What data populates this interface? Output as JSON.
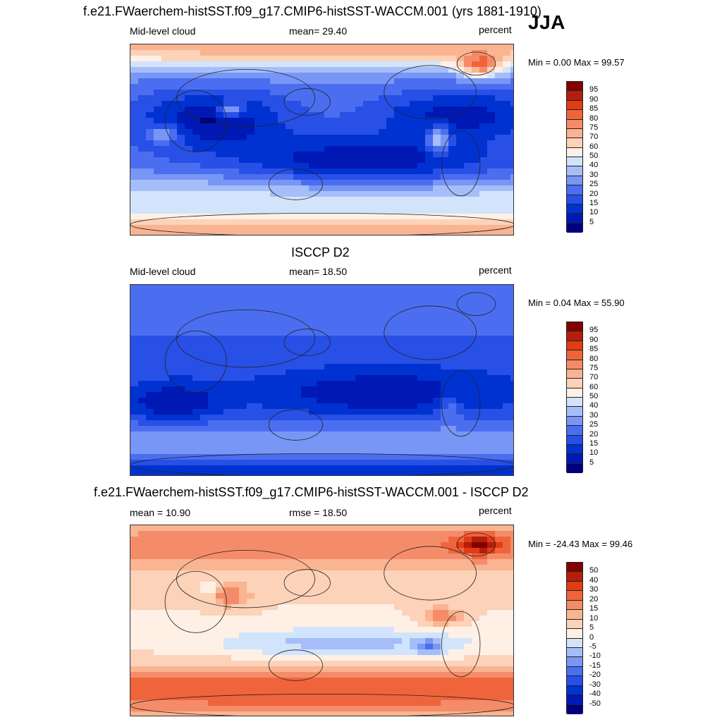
{
  "season": "JJA",
  "units_label": "percent",
  "panels": [
    {
      "title": "f.e21.FWaerchem-histSST.f09_g17.CMIP6-histSST-WACCM.001 (yrs 1881-1910)",
      "left_label": "Mid-level cloud",
      "center_label": "mean=  29.40",
      "right_label": "percent",
      "minmax": "Min =   0.00 Max =  99.57",
      "colorbar_ticks": [
        "95",
        "90",
        "85",
        "80",
        "75",
        "70",
        "60",
        "50",
        "40",
        "30",
        "25",
        "20",
        "15",
        "10",
        "5"
      ],
      "field": "model"
    },
    {
      "title": "ISCCP D2",
      "left_label": "Mid-level cloud",
      "center_label": "mean=  18.50",
      "right_label": "percent",
      "minmax": "Min =   0.04 Max =  55.90",
      "colorbar_ticks": [
        "95",
        "90",
        "85",
        "80",
        "75",
        "70",
        "60",
        "50",
        "40",
        "30",
        "25",
        "20",
        "15",
        "10",
        "5"
      ],
      "field": "obs"
    },
    {
      "title": "f.e21.FWaerchem-histSST.f09_g17.CMIP6-histSST-WACCM.001 - ISCCP D2",
      "left_label": "mean =  10.90",
      "center_label": "rmse =  18.50",
      "right_label": "percent",
      "minmax": "Min = -24.43 Max =  99.46",
      "colorbar_ticks": [
        "50",
        "40",
        "30",
        "20",
        "15",
        "10",
        "5",
        "0",
        "-5",
        "-10",
        "-15",
        "-20",
        "-30",
        "-40",
        "-50"
      ],
      "field": "diff"
    }
  ],
  "colors": {
    "palette": [
      "#00007f",
      "#0019b4",
      "#0032d2",
      "#2850e6",
      "#4b6ef0",
      "#7896f5",
      "#a5bef9",
      "#d2e4fc",
      "#fff0e6",
      "#fcd2b9",
      "#fab491",
      "#f58c69",
      "#f0643c",
      "#e13c14",
      "#b41e0a",
      "#820000"
    ],
    "coast": "#222222"
  }
}
